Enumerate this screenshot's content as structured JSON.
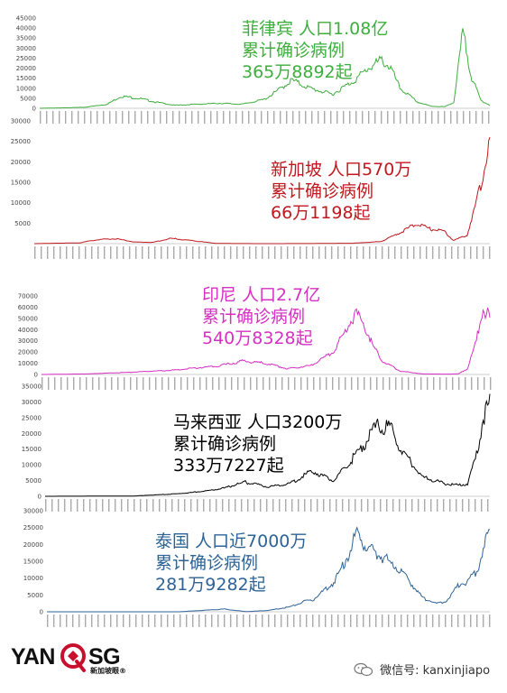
{
  "chart_data": [
    {
      "type": "line",
      "ann": [
        "菲律宾 人口1.08亿",
        "累计确诊病例",
        "365万8892起"
      ],
      "color": "#3eae3e",
      "ylim": [
        0,
        45000
      ],
      "yticks": [
        0,
        5000,
        10000,
        15000,
        20000,
        25000,
        30000,
        35000,
        40000,
        45000
      ],
      "ytick_labels": [
        "0",
        "5000",
        "10000",
        "15000",
        "20000",
        "25000",
        "30000",
        "35000",
        "40000",
        "45000"
      ],
      "x": [
        0,
        0.05,
        0.1,
        0.15,
        0.18,
        0.22,
        0.26,
        0.3,
        0.35,
        0.4,
        0.45,
        0.5,
        0.53,
        0.56,
        0.6,
        0.65,
        0.7,
        0.73,
        0.76,
        0.78,
        0.8,
        0.84,
        0.87,
        0.9,
        0.92,
        0.94,
        0.96,
        0.98,
        1.0
      ],
      "values": [
        0,
        200,
        500,
        2000,
        6000,
        5000,
        3000,
        1500,
        2000,
        2500,
        2000,
        4500,
        9000,
        14000,
        10000,
        7000,
        14000,
        20000,
        24000,
        20000,
        10000,
        3000,
        1000,
        800,
        3000,
        38000,
        15000,
        4000,
        1500
      ]
    },
    {
      "type": "line",
      "ann": [
        "新加坡  人口570万",
        "累计确诊病例",
        "66万1198起"
      ],
      "color": "#c0181e",
      "ylim": [
        0,
        30000
      ],
      "yticks": [
        5000,
        10000,
        15000,
        20000,
        25000,
        30000
      ],
      "ytick_labels": [
        "5000",
        "10000",
        "15000",
        "20000",
        "25000",
        "30000"
      ],
      "x": [
        0,
        0.1,
        0.14,
        0.18,
        0.22,
        0.26,
        0.3,
        0.4,
        0.5,
        0.6,
        0.7,
        0.76,
        0.8,
        0.84,
        0.87,
        0.9,
        0.92,
        0.95,
        0.97,
        0.99,
        1.0
      ],
      "values": [
        0,
        200,
        1000,
        1200,
        400,
        300,
        1300,
        50,
        0,
        20,
        100,
        500,
        2500,
        5000,
        3500,
        3000,
        800,
        2000,
        10000,
        19000,
        26000
      ]
    },
    {
      "type": "line",
      "ann": [
        "印尼  人口2.7亿",
        "累计确诊病例",
        "540万8328起"
      ],
      "color": "#d62fc4",
      "ylim": [
        0,
        70000
      ],
      "yticks": [
        0,
        10000,
        20000,
        30000,
        40000,
        50000,
        60000,
        70000
      ],
      "ytick_labels": [
        "0",
        "10000",
        "20000",
        "30000",
        "40000",
        "50000",
        "60000",
        "70000"
      ],
      "x": [
        0,
        0.1,
        0.2,
        0.3,
        0.4,
        0.45,
        0.5,
        0.55,
        0.6,
        0.65,
        0.68,
        0.7,
        0.72,
        0.74,
        0.76,
        0.8,
        0.85,
        0.9,
        0.93,
        0.95,
        0.97,
        0.985,
        1.0
      ],
      "values": [
        0,
        500,
        2000,
        4000,
        8000,
        12000,
        10000,
        5000,
        8000,
        20000,
        40000,
        55000,
        45000,
        25000,
        12000,
        3000,
        500,
        300,
        500,
        5000,
        30000,
        60000,
        50000
      ]
    },
    {
      "type": "line",
      "ann": [
        "马来西亚  人口3200万",
        "累计确诊病例",
        "333万7227起"
      ],
      "color": "#000000",
      "ylim": [
        0,
        35000
      ],
      "yticks": [
        0,
        5000,
        10000,
        15000,
        20000,
        25000,
        30000,
        35000
      ],
      "ytick_labels": [
        "0",
        "5000",
        "10000",
        "15000",
        "20000",
        "25000",
        "30000",
        "35000"
      ],
      "x": [
        0,
        0.2,
        0.3,
        0.35,
        0.4,
        0.45,
        0.5,
        0.55,
        0.6,
        0.65,
        0.68,
        0.72,
        0.75,
        0.78,
        0.8,
        0.85,
        0.9,
        0.93,
        0.95,
        0.97,
        0.985,
        1.0
      ],
      "values": [
        0,
        100,
        800,
        1500,
        2500,
        4500,
        3000,
        4000,
        8000,
        5000,
        10000,
        17000,
        23000,
        21000,
        15000,
        6000,
        4000,
        3500,
        4000,
        13000,
        25000,
        30000
      ]
    },
    {
      "type": "line",
      "ann": [
        "泰国  人口近7000万",
        "累计确诊病例",
        "281万9282起"
      ],
      "color": "#2e6396",
      "ylim": [
        0,
        30000
      ],
      "yticks": [
        0,
        5000,
        10000,
        15000,
        20000,
        25000,
        30000
      ],
      "ytick_labels": [
        "0",
        "5000",
        "10000",
        "15000",
        "20000",
        "25000",
        "30000"
      ],
      "x": [
        0,
        0.3,
        0.35,
        0.4,
        0.45,
        0.5,
        0.55,
        0.58,
        0.6,
        0.65,
        0.68,
        0.7,
        0.72,
        0.75,
        0.8,
        0.85,
        0.88,
        0.9,
        0.93,
        0.95,
        0.97,
        0.985,
        1.0
      ],
      "values": [
        0,
        10,
        400,
        800,
        50,
        400,
        1500,
        3000,
        3500,
        9000,
        17000,
        23000,
        20000,
        17000,
        12000,
        4000,
        2500,
        3000,
        8000,
        9000,
        12000,
        18000,
        24000
      ]
    }
  ],
  "logo": {
    "left": "YAN",
    "right": "SG",
    "sub": "新加坡眼®"
  },
  "footer": {
    "wechat": "微信号: kanxinjiapo",
    "icon": "wechat-icon"
  }
}
